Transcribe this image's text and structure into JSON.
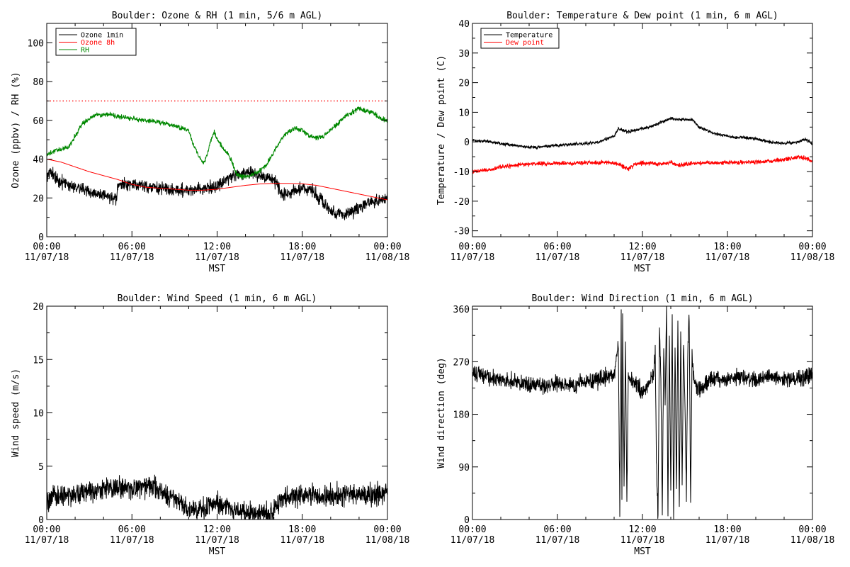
{
  "chart_data": [
    {
      "type": "line",
      "title": "Boulder: Ozone & RH (1 min, 5/6 m AGL)",
      "xlabel": "MST",
      "ylabel": "Ozone (ppbv) / RH (%)",
      "xlim": [
        0,
        24
      ],
      "ylim": [
        0,
        110
      ],
      "y_ticks": [
        0,
        20,
        40,
        60,
        80,
        100
      ],
      "x_ticks": [
        {
          "h": 0,
          "time": "00:00",
          "date": "11/07/18"
        },
        {
          "h": 6,
          "time": "06:00",
          "date": "11/07/18"
        },
        {
          "h": 12,
          "time": "12:00",
          "date": "11/07/18"
        },
        {
          "h": 18,
          "time": "18:00",
          "date": "11/07/18"
        },
        {
          "h": 24,
          "time": "00:00",
          "date": "11/08/18"
        }
      ],
      "legend_position": "top-left",
      "reference_lines": [
        {
          "y": 70,
          "color": "#ff0000",
          "style": "dotted"
        }
      ],
      "series": [
        {
          "name": "Ozone 1min",
          "color": "#000000",
          "noise": 1.6,
          "x": [
            0,
            0.2,
            0.5,
            1,
            1.5,
            2,
            2.5,
            3,
            3.5,
            4,
            4.5,
            4.9,
            5.0,
            5.5,
            6,
            7,
            8,
            9,
            10,
            11,
            12,
            12.5,
            13,
            13.5,
            14,
            15,
            15.5,
            16,
            16.3,
            16.6,
            17,
            18,
            18.5,
            19,
            19.5,
            20,
            20.5,
            21,
            21.5,
            22,
            22.5,
            23,
            23.5,
            24
          ],
          "y": [
            31,
            34,
            31,
            28,
            27,
            26,
            25,
            23,
            22,
            21,
            20,
            19,
            26,
            27,
            27,
            26,
            25,
            24,
            24,
            25,
            26,
            29,
            31,
            32,
            33,
            32,
            30,
            29,
            26,
            22,
            22,
            25,
            25,
            22,
            17,
            13,
            12,
            12,
            13,
            14,
            17,
            18,
            19,
            21
          ]
        },
        {
          "name": "Ozone 8h",
          "color": "#ff0000",
          "noise": 0,
          "x": [
            0,
            1,
            2,
            3,
            4,
            5,
            6,
            7,
            8,
            9,
            10,
            11,
            12,
            13,
            14,
            15,
            16,
            17,
            18,
            19,
            20,
            21,
            22,
            23,
            24
          ],
          "y": [
            40,
            38.5,
            36,
            33.5,
            31.5,
            29.5,
            27,
            25.5,
            25,
            24.5,
            24,
            24,
            24.5,
            25.5,
            26.5,
            27.2,
            27.5,
            27.5,
            27.3,
            26.5,
            25,
            23.5,
            22,
            20.5,
            19
          ]
        },
        {
          "name": "RH",
          "color": "#008800",
          "noise": 0.6,
          "x": [
            0,
            0.5,
            1,
            1.5,
            2,
            2.5,
            3,
            3.5,
            4,
            4.5,
            5,
            6,
            7,
            8,
            8.5,
            9,
            9.5,
            10,
            10.3,
            10.6,
            11,
            11.3,
            11.5,
            11.8,
            12,
            12.5,
            13,
            13.3,
            13.6,
            14,
            14.5,
            15,
            15.5,
            16,
            16.5,
            17,
            17.5,
            18,
            18.5,
            19,
            19.5,
            20,
            20.5,
            21,
            21.5,
            22,
            22.5,
            23,
            23.5,
            24
          ],
          "y": [
            42,
            44,
            45,
            46,
            52,
            58,
            61,
            63,
            63,
            63,
            62,
            61,
            60,
            59,
            58,
            57,
            56,
            55,
            48,
            43,
            38,
            42,
            48,
            54,
            50,
            45,
            40,
            33,
            31,
            31,
            32,
            34,
            37,
            44,
            50,
            54,
            56,
            55,
            52,
            51,
            52,
            55,
            58,
            62,
            64,
            66,
            65,
            64,
            61,
            60
          ]
        }
      ]
    },
    {
      "type": "line",
      "title": "Boulder: Temperature & Dew point (1 min, 6 m AGL)",
      "xlabel": "MST",
      "ylabel": "Temperature / Dew point (C)",
      "xlim": [
        0,
        24
      ],
      "ylim": [
        -32,
        40
      ],
      "y_ticks": [
        -30,
        -20,
        -10,
        0,
        10,
        20,
        30,
        40
      ],
      "x_ticks": [
        {
          "h": 0,
          "time": "00:00",
          "date": "11/07/18"
        },
        {
          "h": 6,
          "time": "06:00",
          "date": "11/07/18"
        },
        {
          "h": 12,
          "time": "12:00",
          "date": "11/07/18"
        },
        {
          "h": 18,
          "time": "18:00",
          "date": "11/07/18"
        },
        {
          "h": 24,
          "time": "00:00",
          "date": "11/08/18"
        }
      ],
      "legend_position": "top-left",
      "series": [
        {
          "name": "Temperature",
          "color": "#000000",
          "noise": 0.25,
          "x": [
            0,
            1,
            2,
            3,
            4,
            4.5,
            5,
            6,
            7,
            8,
            9,
            9.5,
            10,
            10.3,
            10.6,
            11,
            11.5,
            12,
            12.5,
            13,
            13.5,
            14,
            14.5,
            15,
            15.5,
            16,
            16.5,
            17,
            17.5,
            18,
            18.5,
            19,
            20,
            21,
            22,
            22.5,
            23,
            23.5,
            24
          ],
          "y": [
            0.5,
            0.3,
            -0.5,
            -1.2,
            -1.8,
            -1.8,
            -1.5,
            -1.2,
            -0.8,
            -0.5,
            0,
            1,
            2,
            4.5,
            4,
            3.5,
            4,
            4.5,
            5,
            6,
            7,
            8,
            7.5,
            7.5,
            7.5,
            5,
            4,
            3,
            2.5,
            2,
            1.5,
            1.5,
            1,
            0,
            -0.5,
            -0.3,
            0,
            1,
            -0.5
          ]
        },
        {
          "name": "Dew point",
          "color": "#ff0000",
          "noise": 0.35,
          "x": [
            0,
            1,
            2,
            3,
            4,
            5,
            6,
            7,
            8,
            9,
            10,
            10.5,
            11,
            11.5,
            12,
            13,
            14,
            14.5,
            15,
            16,
            17,
            18,
            19,
            20,
            21,
            22,
            22.5,
            23,
            23.5,
            24
          ],
          "y": [
            -10,
            -9.5,
            -8.5,
            -7.8,
            -7.5,
            -7.3,
            -7.2,
            -7.1,
            -7,
            -6.9,
            -7,
            -8,
            -9,
            -7.5,
            -7,
            -7.5,
            -7,
            -8,
            -7.5,
            -7.2,
            -7,
            -7,
            -6.9,
            -6.8,
            -6.5,
            -6,
            -5.5,
            -5,
            -5.5,
            -6.5
          ]
        }
      ]
    },
    {
      "type": "line",
      "title": "Boulder: Wind Speed (1 min, 6 m AGL)",
      "xlabel": "MST",
      "ylabel": "Wind speed (m/s)",
      "xlim": [
        0,
        24
      ],
      "ylim": [
        0,
        20
      ],
      "y_ticks": [
        0,
        5,
        10,
        15,
        20
      ],
      "x_ticks": [
        {
          "h": 0,
          "time": "00:00",
          "date": "11/07/18"
        },
        {
          "h": 6,
          "time": "06:00",
          "date": "11/07/18"
        },
        {
          "h": 12,
          "time": "12:00",
          "date": "11/07/18"
        },
        {
          "h": 18,
          "time": "18:00",
          "date": "11/07/18"
        },
        {
          "h": 24,
          "time": "00:00",
          "date": "11/08/18"
        }
      ],
      "series": [
        {
          "color": "#000000",
          "noise": 0.5,
          "x": [
            0,
            0.5,
            1,
            2,
            3,
            4,
            5,
            6,
            7,
            7.5,
            8,
            8.5,
            9,
            9.5,
            10,
            10.5,
            11,
            11.5,
            12,
            12.5,
            13,
            13.5,
            14,
            14.5,
            15,
            15.5,
            16,
            16.5,
            17,
            18,
            19,
            20,
            21,
            22,
            23,
            24
          ],
          "y": [
            1.5,
            2,
            2.2,
            2.3,
            2.7,
            3,
            3,
            2.7,
            3.2,
            3,
            2.5,
            2.2,
            2,
            1.5,
            0.8,
            0.8,
            1,
            1.5,
            1.5,
            1.2,
            1,
            0.8,
            0.6,
            0.6,
            0.5,
            0.6,
            0.7,
            2,
            2.2,
            2.2,
            2.2,
            2.2,
            2.3,
            2.4,
            2.2,
            2.5
          ]
        }
      ]
    },
    {
      "type": "line",
      "title": "Boulder: Wind Direction (1 min, 6 m AGL)",
      "xlabel": "MST",
      "ylabel": "Wind direction (deg)",
      "xlim": [
        0,
        24
      ],
      "ylim": [
        0,
        365
      ],
      "y_ticks": [
        0,
        90,
        180,
        270,
        360
      ],
      "x_ticks": [
        {
          "h": 0,
          "time": "00:00",
          "date": "11/07/18"
        },
        {
          "h": 6,
          "time": "06:00",
          "date": "11/07/18"
        },
        {
          "h": 12,
          "time": "12:00",
          "date": "11/07/18"
        },
        {
          "h": 18,
          "time": "18:00",
          "date": "11/07/18"
        },
        {
          "h": 24,
          "time": "00:00",
          "date": "11/08/18"
        }
      ],
      "series": [
        {
          "color": "#000000",
          "noise": 7,
          "x": [
            0,
            1,
            2,
            3,
            4,
            5,
            6,
            7,
            8,
            9,
            10,
            10.3,
            10.4,
            10.5,
            10.55,
            10.6,
            10.7,
            10.8,
            10.9,
            11,
            11.5,
            12,
            12.5,
            12.8,
            12.9,
            13,
            13.1,
            13.2,
            13.3,
            13.4,
            13.5,
            13.6,
            13.7,
            13.8,
            13.9,
            14,
            14.1,
            14.2,
            14.3,
            14.4,
            14.5,
            14.6,
            14.7,
            14.8,
            14.9,
            15,
            15.1,
            15.2,
            15.3,
            15.4,
            15.5,
            15.6,
            15.8,
            16,
            16.5,
            17,
            18,
            19,
            20,
            21,
            22,
            23,
            24
          ],
          "y": [
            250,
            245,
            240,
            235,
            232,
            230,
            232,
            230,
            235,
            240,
            245,
            300,
            20,
            350,
            30,
            340,
            60,
            300,
            25,
            240,
            230,
            220,
            235,
            250,
            290,
            80,
            5,
            330,
            240,
            10,
            300,
            200,
            360,
            5,
            320,
            40,
            350,
            5,
            300,
            50,
            340,
            10,
            320,
            60,
            300,
            200,
            40,
            290,
            350,
            20,
            280,
            240,
            230,
            220,
            235,
            240,
            240,
            245,
            240,
            245,
            240,
            240,
            250
          ]
        }
      ]
    }
  ]
}
